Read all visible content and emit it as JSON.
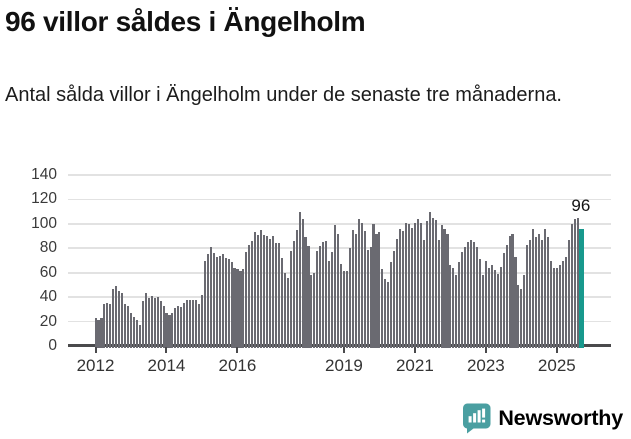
{
  "header": {
    "title": "96 villor såldes i Ängelholm",
    "subtitle": "Antal sålda villor i Ängelholm under de senaste tre månaderna."
  },
  "chart_data": {
    "type": "bar",
    "title": "96 villor såldes i Ängelholm",
    "subtitle": "Antal sålda villor i Ängelholm under de senaste tre månaderna.",
    "frequency": "monthly",
    "x_start": "2012-01",
    "x_end": "2025-09",
    "ylim": [
      0,
      140
    ],
    "grid": true,
    "y_ticks": [
      0,
      20,
      40,
      60,
      80,
      100,
      120,
      140
    ],
    "x_tick_years": [
      2012,
      2014,
      2016,
      2019,
      2021,
      2023,
      2025
    ],
    "bar_color": "#6a6a71",
    "highlight_color": "#18998d",
    "latest_annotation": "96",
    "values": [
      23,
      21,
      23,
      34,
      35,
      34,
      47,
      49,
      45,
      43,
      34,
      33,
      27,
      24,
      21,
      17,
      37,
      43,
      39,
      41,
      39,
      40,
      37,
      33,
      27,
      25,
      27,
      31,
      33,
      32,
      35,
      38,
      38,
      38,
      38,
      34,
      42,
      70,
      75,
      81,
      76,
      73,
      74,
      75,
      72,
      71,
      69,
      64,
      63,
      61,
      63,
      77,
      83,
      86,
      93,
      91,
      95,
      91,
      90,
      88,
      90,
      84,
      84,
      72,
      60,
      56,
      78,
      86,
      95,
      110,
      104,
      89,
      82,
      58,
      60,
      78,
      82,
      85,
      86,
      70,
      77,
      99,
      92,
      67,
      61,
      61,
      80,
      95,
      92,
      104,
      101,
      94,
      79,
      81,
      100,
      92,
      93,
      63,
      55,
      52,
      69,
      78,
      88,
      96,
      94,
      101,
      100,
      97,
      101,
      104,
      101,
      87,
      102,
      110,
      105,
      103,
      87,
      99,
      96,
      92,
      66,
      64,
      58,
      69,
      77,
      81,
      85,
      87,
      85,
      81,
      71,
      58,
      70,
      64,
      66,
      62,
      59,
      65,
      76,
      83,
      90,
      92,
      73,
      50,
      47,
      58,
      83,
      87,
      96,
      89,
      92,
      87,
      96,
      89,
      70,
      64,
      64,
      66,
      70,
      73,
      87,
      100,
      104,
      105,
      96
    ],
    "highlight_index": 164,
    "highlight_value": 96
  },
  "footer": {
    "brand": "Newsworthy",
    "brand_color": "#4a9fa1",
    "logo_icon": "newsworthy-chart-bubble-icon"
  }
}
